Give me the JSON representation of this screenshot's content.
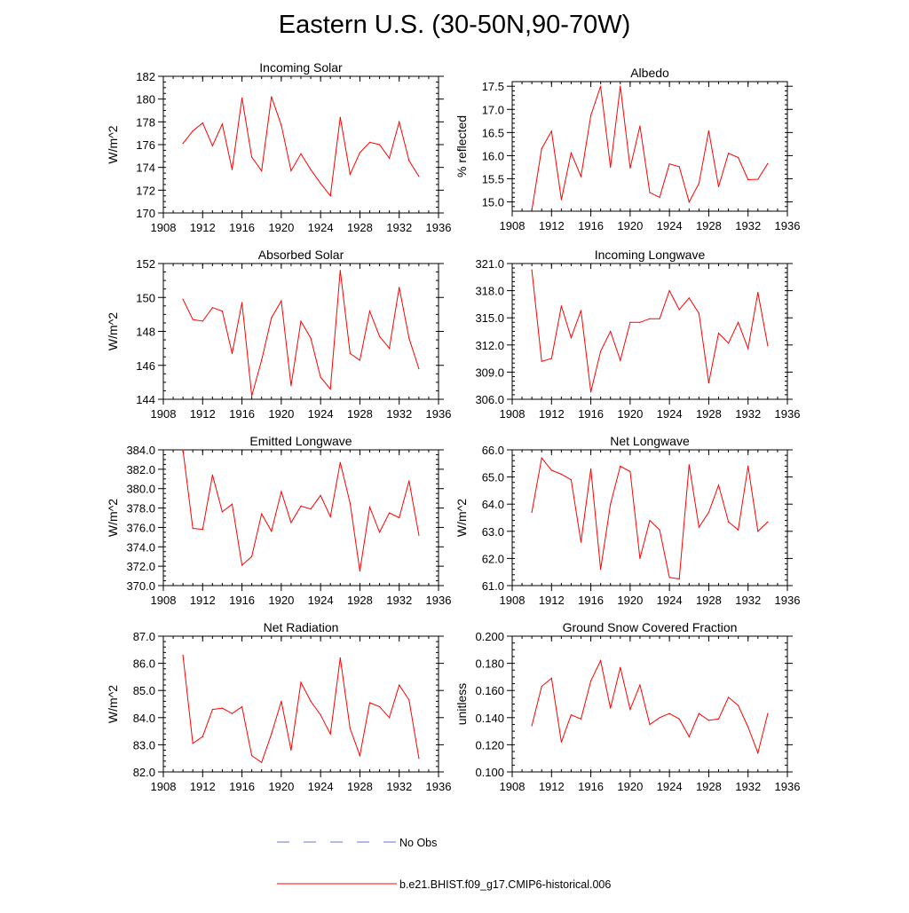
{
  "figure": {
    "title": "Eastern U.S. (30-50N,90-70W)",
    "line_color": "#ff0000",
    "obs_color": "#6677cc"
  },
  "legend": {
    "obs_label": "No Obs",
    "model_label": "b.e21.BHIST.f09_g17.CMIP6-historical.006"
  },
  "chart_data": [
    {
      "id": "incoming-solar",
      "type": "line",
      "title": "Incoming Solar",
      "ylabel": "W/m^2",
      "xlim": [
        1908,
        1936
      ],
      "xticks": [
        1908,
        1912,
        1916,
        1920,
        1924,
        1928,
        1932,
        1936
      ],
      "xminor": 1,
      "ylim": [
        170,
        182
      ],
      "yticks": [
        170,
        172,
        174,
        176,
        178,
        180,
        182
      ],
      "yminor": 0.5,
      "decimals": 0,
      "x": [
        1910,
        1911,
        1912,
        1913,
        1914,
        1915,
        1916,
        1917,
        1918,
        1919,
        1920,
        1921,
        1922,
        1923,
        1924,
        1925,
        1926,
        1927,
        1928,
        1929,
        1930,
        1931,
        1932,
        1933,
        1934
      ],
      "values": [
        176.1,
        177.2,
        177.9,
        175.9,
        177.8,
        173.8,
        180.1,
        174.9,
        173.7,
        180.2,
        177.7,
        173.7,
        175.2,
        173.8,
        172.6,
        171.5,
        178.4,
        173.4,
        175.3,
        176.2,
        176.0,
        174.8,
        178.0,
        174.6,
        173.2
      ]
    },
    {
      "id": "albedo",
      "type": "line",
      "title": "Albedo",
      "ylabel": "% reflected",
      "xlim": [
        1908,
        1936
      ],
      "xticks": [
        1908,
        1912,
        1916,
        1920,
        1924,
        1928,
        1932,
        1936
      ],
      "xminor": 1,
      "ylim": [
        14.8,
        17.6
      ],
      "yticks": [
        15.0,
        15.5,
        16.0,
        16.5,
        17.0,
        17.5
      ],
      "yminor": 0.1,
      "decimals": 1,
      "x": [
        1910,
        1911,
        1912,
        1913,
        1914,
        1915,
        1916,
        1917,
        1918,
        1919,
        1920,
        1921,
        1922,
        1923,
        1924,
        1925,
        1926,
        1927,
        1928,
        1929,
        1930,
        1931,
        1932,
        1933,
        1934
      ],
      "values": [
        14.82,
        16.15,
        16.53,
        15.05,
        16.06,
        15.55,
        16.87,
        17.5,
        15.75,
        17.5,
        15.73,
        16.64,
        15.2,
        15.1,
        15.82,
        15.76,
        15.0,
        15.4,
        16.54,
        15.33,
        16.05,
        15.96,
        15.48,
        15.49,
        15.83
      ]
    },
    {
      "id": "absorbed-solar",
      "type": "line",
      "title": "Absorbed Solar",
      "ylabel": "W/m^2",
      "xlim": [
        1908,
        1936
      ],
      "xticks": [
        1908,
        1912,
        1916,
        1920,
        1924,
        1928,
        1932,
        1936
      ],
      "xminor": 1,
      "ylim": [
        144,
        152
      ],
      "yticks": [
        144,
        146,
        148,
        150,
        152
      ],
      "yminor": 0.5,
      "decimals": 0,
      "x": [
        1910,
        1911,
        1912,
        1913,
        1914,
        1915,
        1916,
        1917,
        1918,
        1919,
        1920,
        1921,
        1922,
        1923,
        1924,
        1925,
        1926,
        1927,
        1928,
        1929,
        1930,
        1931,
        1932,
        1933,
        1934
      ],
      "values": [
        149.9,
        148.7,
        148.6,
        149.4,
        149.2,
        146.7,
        149.7,
        144.2,
        146.3,
        148.8,
        149.8,
        144.8,
        148.6,
        147.6,
        145.3,
        144.6,
        151.6,
        146.7,
        146.3,
        149.2,
        147.7,
        147.0,
        150.6,
        147.6,
        145.8
      ]
    },
    {
      "id": "incoming-longwave",
      "type": "line",
      "title": "Incoming Longwave",
      "ylabel": "",
      "xlim": [
        1908,
        1936
      ],
      "xticks": [
        1908,
        1912,
        1916,
        1920,
        1924,
        1928,
        1932,
        1936
      ],
      "xminor": 1,
      "ylim": [
        306,
        321
      ],
      "yticks": [
        306.0,
        309.0,
        312.0,
        315.0,
        318.0,
        321.0
      ],
      "yminor": 0.5,
      "decimals": 1,
      "x": [
        1910,
        1911,
        1912,
        1913,
        1914,
        1915,
        1916,
        1917,
        1918,
        1919,
        1920,
        1921,
        1922,
        1923,
        1924,
        1925,
        1926,
        1927,
        1928,
        1929,
        1930,
        1931,
        1932,
        1933,
        1934
      ],
      "values": [
        320.3,
        310.2,
        310.5,
        316.3,
        312.8,
        315.8,
        306.8,
        311.3,
        313.5,
        310.3,
        314.5,
        314.5,
        314.9,
        314.9,
        318.0,
        315.9,
        317.2,
        315.5,
        307.8,
        313.3,
        312.2,
        314.5,
        311.6,
        317.8,
        311.9
      ]
    },
    {
      "id": "emitted-longwave",
      "type": "line",
      "title": "Emitted Longwave",
      "ylabel": "W/m^2",
      "xlim": [
        1908,
        1936
      ],
      "xticks": [
        1908,
        1912,
        1916,
        1920,
        1924,
        1928,
        1932,
        1936
      ],
      "xminor": 1,
      "ylim": [
        370,
        384
      ],
      "yticks": [
        370.0,
        372.0,
        374.0,
        376.0,
        378.0,
        380.0,
        382.0,
        384.0
      ],
      "yminor": 0.5,
      "decimals": 1,
      "x": [
        1910,
        1911,
        1912,
        1913,
        1914,
        1915,
        1916,
        1917,
        1918,
        1919,
        1920,
        1921,
        1922,
        1923,
        1924,
        1925,
        1926,
        1927,
        1928,
        1929,
        1930,
        1931,
        1932,
        1933,
        1934
      ],
      "values": [
        384.0,
        375.9,
        375.8,
        381.4,
        377.6,
        378.4,
        372.1,
        373.0,
        377.4,
        375.6,
        379.7,
        376.5,
        378.2,
        377.9,
        379.3,
        377.1,
        382.7,
        378.5,
        371.5,
        378.1,
        375.5,
        377.5,
        377.0,
        380.8,
        375.2
      ]
    },
    {
      "id": "net-longwave",
      "type": "line",
      "title": "Net Longwave",
      "ylabel": "W/m^2",
      "xlim": [
        1908,
        1936
      ],
      "xticks": [
        1908,
        1912,
        1916,
        1920,
        1924,
        1928,
        1932,
        1936
      ],
      "xminor": 1,
      "ylim": [
        61,
        66
      ],
      "yticks": [
        61.0,
        62.0,
        63.0,
        64.0,
        65.0,
        66.0
      ],
      "yminor": 0.2,
      "decimals": 1,
      "x": [
        1910,
        1911,
        1912,
        1913,
        1914,
        1915,
        1916,
        1917,
        1918,
        1919,
        1920,
        1921,
        1922,
        1923,
        1924,
        1925,
        1926,
        1927,
        1928,
        1929,
        1930,
        1931,
        1932,
        1933,
        1934
      ],
      "values": [
        63.7,
        65.7,
        65.25,
        65.1,
        64.9,
        62.6,
        65.3,
        61.6,
        64.0,
        65.4,
        65.2,
        62.0,
        63.4,
        63.05,
        61.3,
        61.25,
        65.45,
        63.15,
        63.7,
        64.7,
        63.35,
        63.05,
        65.4,
        63.0,
        63.35
      ]
    },
    {
      "id": "net-radiation",
      "type": "line",
      "title": "Net Radiation",
      "ylabel": "W/m^2",
      "xlim": [
        1908,
        1936
      ],
      "xticks": [
        1908,
        1912,
        1916,
        1920,
        1924,
        1928,
        1932,
        1936
      ],
      "xminor": 1,
      "ylim": [
        82,
        87
      ],
      "yticks": [
        82.0,
        83.0,
        84.0,
        85.0,
        86.0,
        87.0
      ],
      "yminor": 0.2,
      "decimals": 1,
      "x": [
        1910,
        1911,
        1912,
        1913,
        1914,
        1915,
        1916,
        1917,
        1918,
        1919,
        1920,
        1921,
        1922,
        1923,
        1924,
        1925,
        1926,
        1927,
        1928,
        1929,
        1930,
        1931,
        1932,
        1933,
        1934
      ],
      "values": [
        86.3,
        83.05,
        83.3,
        84.3,
        84.35,
        84.15,
        84.4,
        82.6,
        82.35,
        83.4,
        84.6,
        82.8,
        85.3,
        84.6,
        84.1,
        83.4,
        86.2,
        83.6,
        82.6,
        84.55,
        84.4,
        84.0,
        85.2,
        84.65,
        82.5
      ]
    },
    {
      "id": "ground-snow",
      "type": "line",
      "title": "Ground Snow Covered Fraction",
      "ylabel": "unitless",
      "xlim": [
        1908,
        1936
      ],
      "xticks": [
        1908,
        1912,
        1916,
        1920,
        1924,
        1928,
        1932,
        1936
      ],
      "xminor": 1,
      "ylim": [
        0.1,
        0.2
      ],
      "yticks": [
        0.1,
        0.12,
        0.14,
        0.16,
        0.18,
        0.2
      ],
      "yminor": 0.005,
      "decimals": 3,
      "x": [
        1910,
        1911,
        1912,
        1913,
        1914,
        1915,
        1916,
        1917,
        1918,
        1919,
        1920,
        1921,
        1922,
        1923,
        1924,
        1925,
        1926,
        1927,
        1928,
        1929,
        1930,
        1931,
        1932,
        1933,
        1934
      ],
      "values": [
        0.134,
        0.163,
        0.169,
        0.122,
        0.142,
        0.139,
        0.167,
        0.182,
        0.147,
        0.177,
        0.146,
        0.164,
        0.135,
        0.14,
        0.143,
        0.139,
        0.126,
        0.143,
        0.138,
        0.139,
        0.155,
        0.149,
        0.133,
        0.114,
        0.143
      ]
    }
  ]
}
